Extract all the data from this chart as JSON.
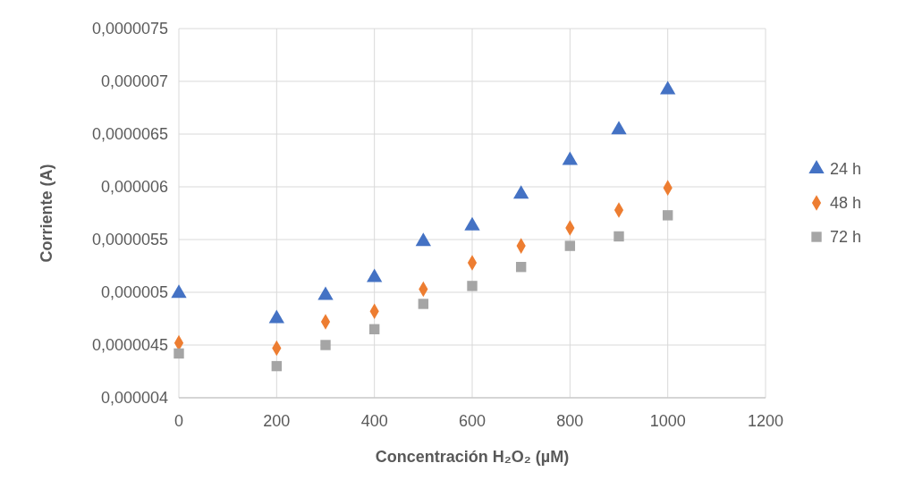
{
  "chart_data": {
    "type": "scatter",
    "xlabel": "Concentración H₂O₂ (µM)",
    "ylabel": "Corriente (A)",
    "xlim": [
      0,
      1200
    ],
    "xticks": [
      0,
      200,
      400,
      600,
      800,
      1000,
      1200
    ],
    "ylim": [
      4e-06,
      7.5e-06
    ],
    "yticks": [
      {
        "value": 4e-06,
        "label": "0,000004"
      },
      {
        "value": 4.5e-06,
        "label": "0,0000045"
      },
      {
        "value": 5e-06,
        "label": "0,000005"
      },
      {
        "value": 5.5e-06,
        "label": "0,0000055"
      },
      {
        "value": 6e-06,
        "label": "0,000006"
      },
      {
        "value": 6.5e-06,
        "label": "0,0000065"
      },
      {
        "value": 7e-06,
        "label": "0,000007"
      },
      {
        "value": 7.5e-06,
        "label": "0,0000075"
      }
    ],
    "grid": true,
    "legend": "right",
    "x": [
      0,
      200,
      300,
      400,
      500,
      600,
      700,
      800,
      900,
      1000
    ],
    "series": [
      {
        "name": "24 h",
        "color": "#4472c4",
        "marker": "triangle",
        "values": [
          4.99e-06,
          4.75e-06,
          4.97e-06,
          5.14e-06,
          5.48e-06,
          5.63e-06,
          5.93e-06,
          6.25e-06,
          6.54e-06,
          6.92e-06
        ]
      },
      {
        "name": "48 h",
        "color": "#ed7d31",
        "marker": "diamond",
        "values": [
          4.52e-06,
          4.47e-06,
          4.72e-06,
          4.82e-06,
          5.03e-06,
          5.28e-06,
          5.44e-06,
          5.61e-06,
          5.78e-06,
          5.99e-06
        ]
      },
      {
        "name": "72 h",
        "color": "#a5a5a5",
        "marker": "square",
        "values": [
          4.42e-06,
          4.3e-06,
          4.5e-06,
          4.65e-06,
          4.89e-06,
          5.06e-06,
          5.24e-06,
          5.44e-06,
          5.53e-06,
          5.73e-06
        ]
      }
    ]
  }
}
